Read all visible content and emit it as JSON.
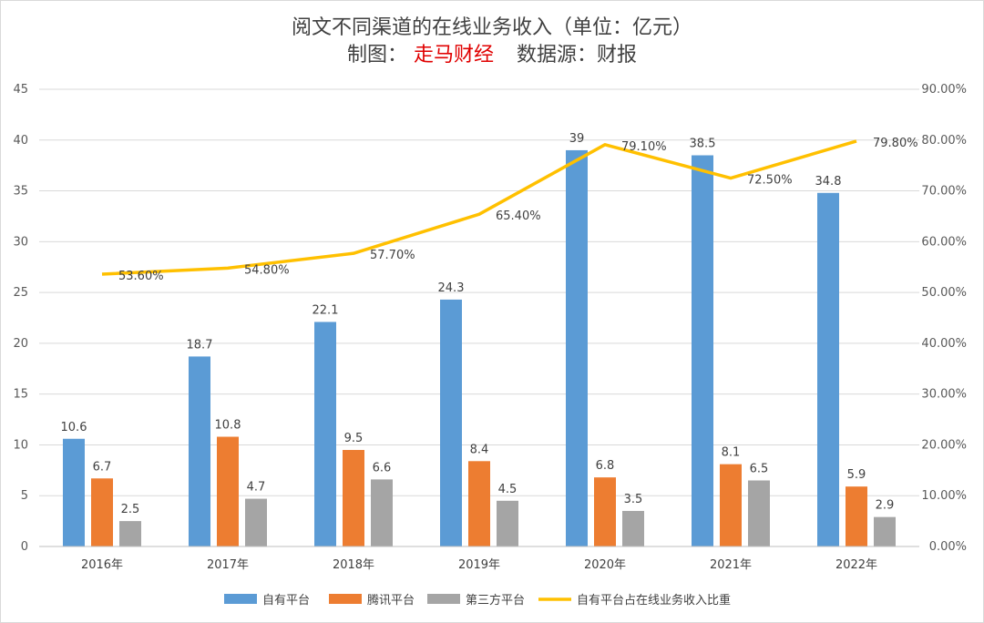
{
  "chart_data": {
    "type": "bar",
    "title_line1": "阅文不同渠道的在线业务收入（单位：亿元）",
    "title_line2_prefix": "制图：",
    "title_line2_brand": "走马财经",
    "title_line2_suffix": "数据源：财报",
    "categories": [
      "2016年",
      "2017年",
      "2018年",
      "2019年",
      "2020年",
      "2021年",
      "2022年"
    ],
    "series": [
      {
        "name": "自有平台",
        "kind": "bar",
        "color": "#5b9bd5",
        "values": [
          10.6,
          18.7,
          22.1,
          24.3,
          39,
          38.5,
          34.8
        ]
      },
      {
        "name": "腾讯平台",
        "kind": "bar",
        "color": "#ed7d31",
        "values": [
          6.7,
          10.8,
          9.5,
          8.4,
          6.8,
          8.1,
          5.9
        ]
      },
      {
        "name": "第三方平台",
        "kind": "bar",
        "color": "#a5a5a5",
        "values": [
          2.5,
          4.7,
          6.6,
          4.5,
          3.5,
          6.5,
          2.9
        ]
      },
      {
        "name": "自有平台占在线业务收入比重",
        "kind": "line",
        "color": "#ffc000",
        "axis": "right",
        "values": [
          53.6,
          54.8,
          57.7,
          65.4,
          79.1,
          72.5,
          79.8
        ],
        "labels": [
          "53.60%",
          "54.80%",
          "57.70%",
          "65.40%",
          "79.10%",
          "72.50%",
          "79.80%"
        ]
      }
    ],
    "bar_labels": [
      [
        "10.6",
        "18.7",
        "22.1",
        "24.3",
        "39",
        "38.5",
        "34.8"
      ],
      [
        "6.7",
        "10.8",
        "9.5",
        "8.4",
        "6.8",
        "8.1",
        "5.9"
      ],
      [
        "2.5",
        "4.7",
        "6.6",
        "4.5",
        "3.5",
        "6.5",
        "2.9"
      ]
    ],
    "left_axis": {
      "min": 0,
      "max": 45,
      "step": 5,
      "ticks": [
        "0",
        "5",
        "10",
        "15",
        "20",
        "25",
        "30",
        "35",
        "40",
        "45"
      ]
    },
    "right_axis": {
      "min": 0,
      "max": 90,
      "step": 10,
      "ticks": [
        "0.00%",
        "10.00%",
        "20.00%",
        "30.00%",
        "40.00%",
        "50.00%",
        "60.00%",
        "70.00%",
        "80.00%",
        "90.00%"
      ]
    },
    "grid": true,
    "legend_position": "bottom",
    "gridline_color": "#d9d9d9"
  }
}
